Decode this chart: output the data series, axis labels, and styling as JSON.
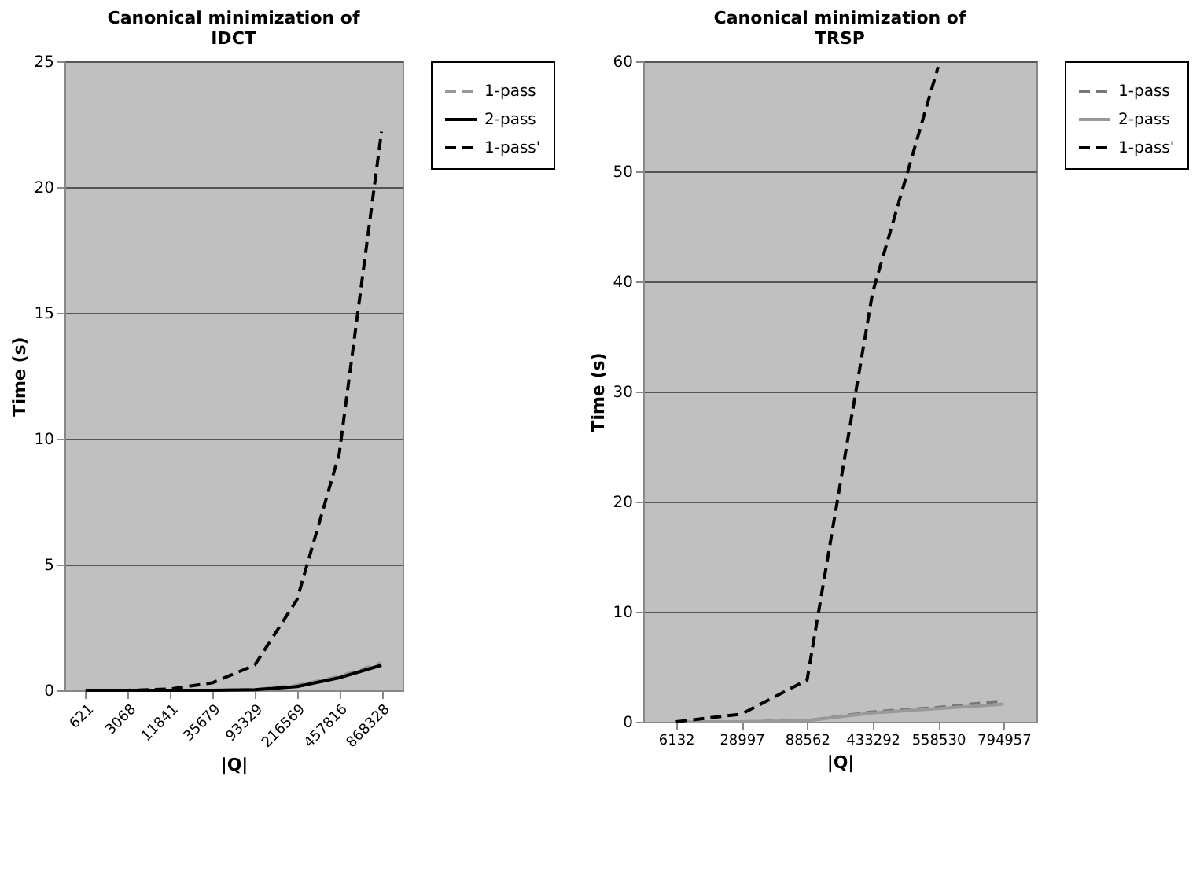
{
  "chart_data": [
    {
      "type": "line",
      "title": "Canonical minimization of IDCT",
      "xlabel": "|Q|",
      "ylabel": "Time (s)",
      "categories": [
        "621",
        "3068",
        "11841",
        "35679",
        "93329",
        "216569",
        "457816",
        "868328"
      ],
      "series": [
        {
          "name": "1-pass",
          "color": "#999999",
          "line_style": "dashed",
          "values": [
            0,
            0,
            0,
            0,
            0.03,
            0.2,
            0.55,
            1.1
          ]
        },
        {
          "name": "2-pass",
          "color": "#000000",
          "line_style": "solid",
          "values": [
            0,
            0,
            0,
            0,
            0.02,
            0.15,
            0.5,
            1.0
          ]
        },
        {
          "name": "1-pass'",
          "color": "#000000",
          "line_style": "dashed",
          "values": [
            0,
            0,
            0.05,
            0.3,
            1.0,
            3.6,
            9.4,
            22.2
          ]
        }
      ],
      "ylim": [
        0,
        25
      ],
      "yticks": [
        0,
        5,
        10,
        15,
        20,
        25
      ],
      "grid": "y",
      "legend": "right"
    },
    {
      "type": "line",
      "title": "Canonical minimization of TRSP",
      "xlabel": "|Q|",
      "ylabel": "Time (s)",
      "categories": [
        "6132",
        "28997",
        "88562",
        "433292",
        "558530",
        "794957"
      ],
      "series": [
        {
          "name": "1-pass",
          "color": "#777777",
          "line_style": "dashed",
          "values": [
            0,
            0,
            0.1,
            0.9,
            1.3,
            1.9
          ]
        },
        {
          "name": "2-pass",
          "color": "#999999",
          "line_style": "solid",
          "values": [
            0,
            0,
            0.1,
            0.8,
            1.2,
            1.6
          ]
        },
        {
          "name": "1-pass'",
          "color": "#000000",
          "line_style": "dashed",
          "values": [
            0,
            0.7,
            3.8,
            39,
            59.5,
            null
          ]
        }
      ],
      "ylim": [
        0,
        60
      ],
      "yticks": [
        0,
        10,
        20,
        30,
        40,
        50,
        60
      ],
      "grid": "y",
      "legend": "right"
    }
  ]
}
